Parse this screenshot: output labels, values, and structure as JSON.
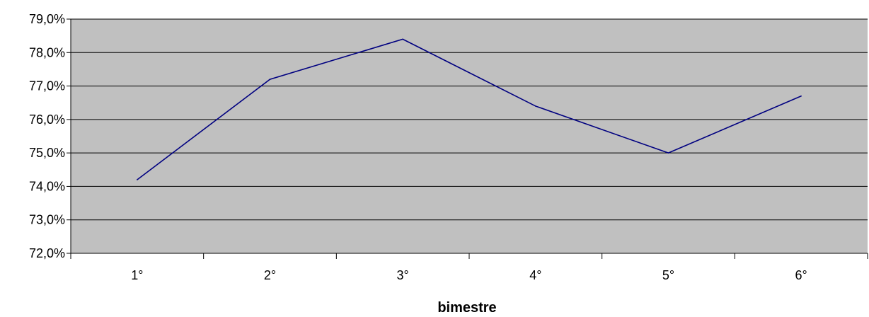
{
  "chart_data": {
    "type": "line",
    "title": "",
    "xlabel": "bimestre",
    "ylabel": "",
    "categories": [
      "1°",
      "2°",
      "3°",
      "4°",
      "5°",
      "6°"
    ],
    "series": [
      {
        "values": [
          74.2,
          77.2,
          78.4,
          76.4,
          75.0,
          76.7
        ]
      }
    ],
    "ylim": [
      72,
      79
    ],
    "yticks": [
      72,
      73,
      74,
      75,
      76,
      77,
      78,
      79
    ],
    "ytick_labels": [
      "72,0%",
      "73,0%",
      "74,0%",
      "75,0%",
      "76,0%",
      "77,0%",
      "78,0%",
      "79,0%"
    ],
    "grid": true,
    "legend": "none",
    "colors": {
      "plot_background": "#c0c0c0",
      "line": "#000080",
      "grid": "#000000"
    }
  }
}
